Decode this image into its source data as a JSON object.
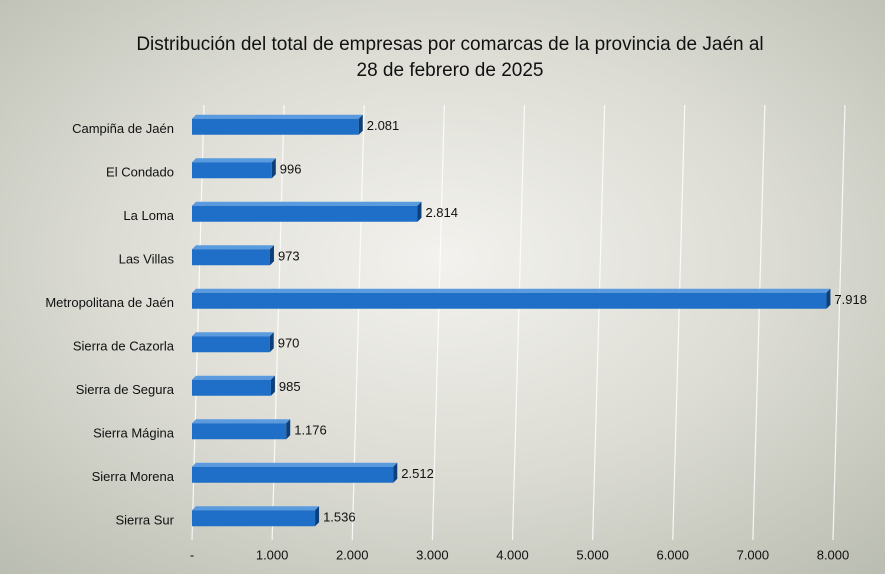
{
  "chart_data": {
    "type": "hbar",
    "title": [
      "Distribución del total de empresas por comarcas de la provincia de Jaén  al",
      "28 de febrero de 2025"
    ],
    "categories": [
      "Campiña de Jaén",
      "El Condado",
      "La Loma",
      "Las Villas",
      "Metropolitana de Jaén",
      "Sierra de Cazorla",
      "Sierra de Segura",
      "Sierra Mágina",
      "Sierra Morena",
      "Sierra Sur"
    ],
    "values": [
      2081,
      996,
      2814,
      973,
      7918,
      970,
      985,
      1176,
      2512,
      1536
    ],
    "value_labels": [
      "2.081",
      "996",
      "2.814",
      "973",
      "7.918",
      "970",
      "985",
      "1.176",
      "2.512",
      "1.536"
    ],
    "color": "#1f6fc8",
    "xlim": [
      0,
      8000
    ],
    "xticks": [
      {
        "value": 0,
        "label": "-"
      },
      {
        "value": 1000,
        "label": "1.000"
      },
      {
        "value": 2000,
        "label": "2.000"
      },
      {
        "value": 3000,
        "label": "3.000"
      },
      {
        "value": 4000,
        "label": "4.000"
      },
      {
        "value": 5000,
        "label": "5.000"
      },
      {
        "value": 6000,
        "label": "6.000"
      },
      {
        "value": 7000,
        "label": "7.000"
      },
      {
        "value": 8000,
        "label": "8.000"
      }
    ],
    "grid": true
  }
}
